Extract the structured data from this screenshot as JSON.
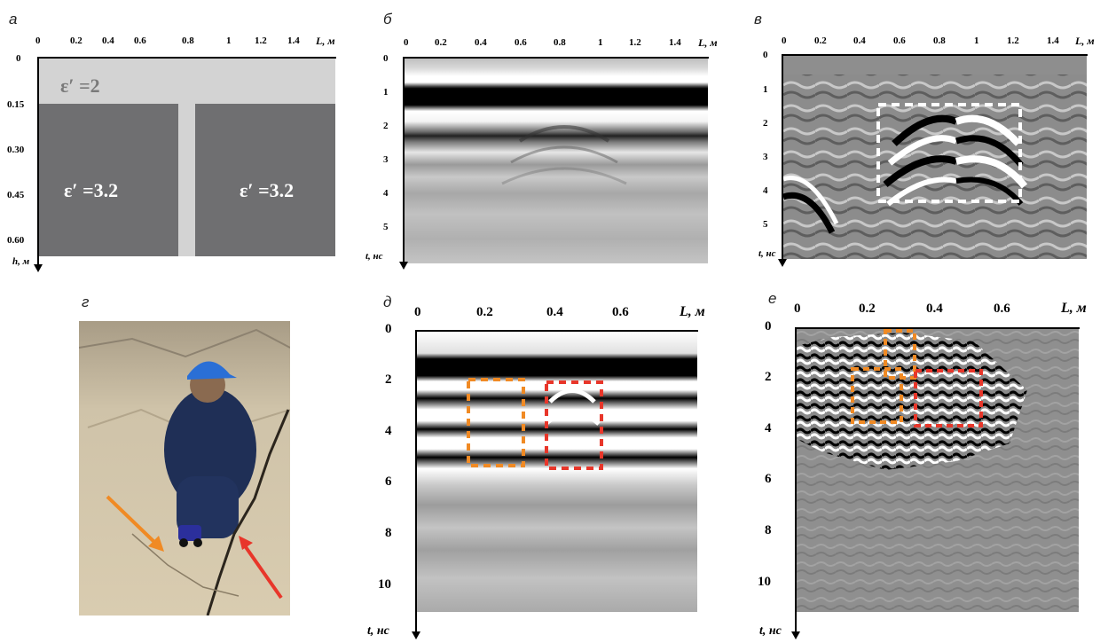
{
  "panels": {
    "a": {
      "letter": "а",
      "x_ticks": [
        "0",
        "0.2",
        "0.4",
        "0.6",
        "0.8",
        "1",
        "1.2",
        "1.4"
      ],
      "x_axis_label": "L, м",
      "y_ticks": [
        "0",
        "0.15",
        "0.30",
        "0.45",
        "0.60"
      ],
      "y_axis_label": "h, м",
      "top_layer_label": "ε′ =2",
      "left_block_label": "ε′ =3.2",
      "right_block_label": "ε′ =3.2",
      "colors": {
        "top_layer": "#d3d3d3",
        "blocks": "#6f6f71",
        "crack": "#d3d3d3"
      }
    },
    "b": {
      "letter": "б",
      "x_ticks": [
        "0",
        "0.2",
        "0.4",
        "0.6",
        "0.8",
        "1",
        "1.2",
        "1.4"
      ],
      "x_axis_label": "L, м",
      "y_ticks": [
        "0",
        "1",
        "2",
        "3",
        "4",
        "5"
      ],
      "y_axis_label": "t, нс"
    },
    "c": {
      "letter": "в",
      "x_ticks": [
        "0",
        "0.2",
        "0.4",
        "0.6",
        "0.8",
        "1",
        "1.2",
        "1.4"
      ],
      "x_axis_label": "L, м",
      "y_ticks": [
        "0",
        "1",
        "2",
        "3",
        "4",
        "5"
      ],
      "y_axis_label": "t, нс",
      "highlight_color": "#ffffff"
    },
    "d": {
      "letter": "г",
      "arrow_colors": {
        "orange": "#f08a24",
        "red": "#e8362a"
      }
    },
    "e": {
      "letter": "д",
      "x_ticks": [
        "0",
        "0.2",
        "0.4",
        "0.6"
      ],
      "x_axis_label": "L, м",
      "y_ticks": [
        "0",
        "2",
        "4",
        "6",
        "8",
        "10"
      ],
      "y_axis_label": "t, нс",
      "box_colors": {
        "orange": "#f08a24",
        "red": "#e8362a"
      }
    },
    "f": {
      "letter": "е",
      "x_ticks": [
        "0",
        "0.2",
        "0.4",
        "0.6"
      ],
      "x_axis_label": "L, м",
      "y_ticks": [
        "0",
        "2",
        "4",
        "6",
        "8",
        "10"
      ],
      "y_axis_label": "t, нс",
      "box_colors": {
        "orange": "#f08a24",
        "red": "#e8362a"
      }
    }
  }
}
